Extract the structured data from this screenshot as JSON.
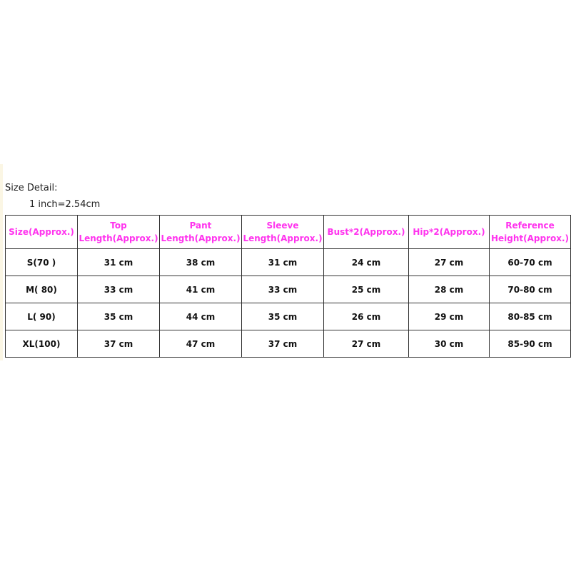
{
  "title": "Size Detail:",
  "note": "1 inch=2.54cm",
  "colors": {
    "header": "#ff33ee",
    "text": "#111111",
    "border": "#333333"
  },
  "table": {
    "headers": [
      [
        "Size(Approx.)"
      ],
      [
        "Top",
        "Length(Approx.)"
      ],
      [
        "Pant",
        "Length(Approx.)"
      ],
      [
        "Sleeve",
        "Length(Approx.)"
      ],
      [
        "Bust*2(Approx.)"
      ],
      [
        "Hip*2(Approx.)"
      ],
      [
        "Reference",
        "Height(Approx.)"
      ]
    ],
    "rows": [
      [
        "S(70 )",
        "31 cm",
        "38 cm",
        "31 cm",
        "24 cm",
        "27 cm",
        "60-70 cm"
      ],
      [
        "M( 80)",
        "33 cm",
        "41 cm",
        "33 cm",
        "25 cm",
        "28 cm",
        "70-80 cm"
      ],
      [
        "L( 90)",
        "35 cm",
        "44 cm",
        "35 cm",
        "26 cm",
        "29 cm",
        "80-85 cm"
      ],
      [
        "XL(100)",
        "37 cm",
        "47 cm",
        "37 cm",
        "27 cm",
        "30 cm",
        "85-90 cm"
      ]
    ]
  }
}
